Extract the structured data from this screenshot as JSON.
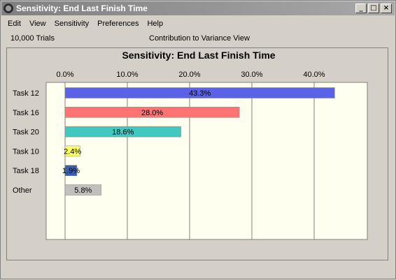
{
  "window": {
    "title": "Sensitivity: End Last Finish Time"
  },
  "window_buttons": {
    "minimize": "_",
    "maximize": "□",
    "close": "×"
  },
  "menu": [
    "Edit",
    "View",
    "Sensitivity",
    "Preferences",
    "Help"
  ],
  "info": {
    "trials": "10,000 Trials",
    "view": "Contribution to Variance View"
  },
  "chart_data": {
    "type": "bar",
    "orientation": "horizontal",
    "title": "Sensitivity: End Last Finish Time",
    "categories": [
      "Task 12",
      "Task 16",
      "Task 20",
      "Task 10",
      "Task 18",
      "Other"
    ],
    "values": [
      43.3,
      28.0,
      18.6,
      2.4,
      1.9,
      5.8
    ],
    "value_labels": [
      "43.3%",
      "28.0%",
      "18.6%",
      "2.4%",
      "1.9%",
      "5.8%"
    ],
    "colors": [
      "#5a63e8",
      "#ff7373",
      "#42c8c0",
      "#ffff66",
      "#3b5fb0",
      "#c0c0c0"
    ],
    "ticks": [
      0,
      10,
      20,
      30,
      40
    ],
    "tick_labels": [
      "0.0%",
      "10.0%",
      "20.0%",
      "30.0%",
      "40.0%"
    ],
    "xlim": [
      0,
      48
    ],
    "grid": true,
    "legend": "none"
  }
}
